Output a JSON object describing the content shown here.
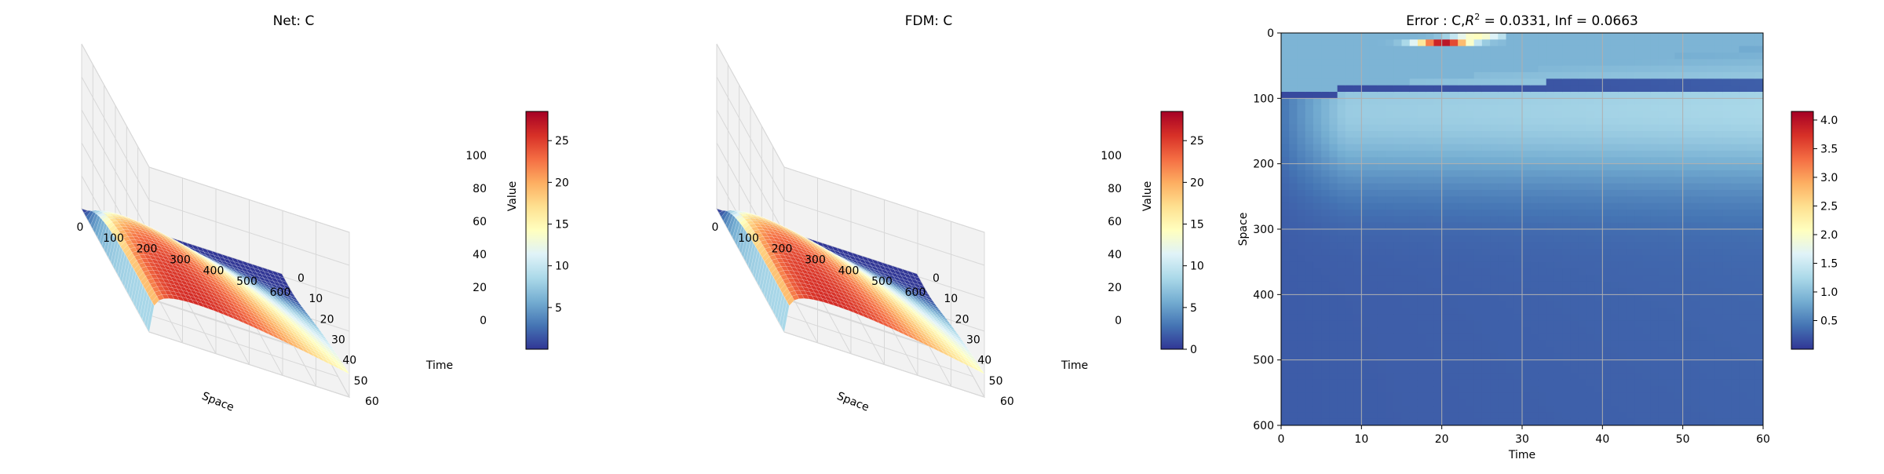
{
  "chart_data": [
    {
      "type": "surface3d",
      "title": "Net: C",
      "xlabel": "Space",
      "ylabel": "Time",
      "zlabel": "Value",
      "xlim": [
        0,
        600
      ],
      "ylim": [
        0,
        60
      ],
      "zlim": [
        0,
        100
      ],
      "x_ticks": [
        "0",
        "100",
        "200",
        "300",
        "400",
        "500",
        "600"
      ],
      "y_ticks": [
        "0",
        "10",
        "20",
        "30",
        "40",
        "50",
        "60"
      ],
      "z_ticks": [
        "0",
        "20",
        "40",
        "60",
        "80",
        "100"
      ],
      "colormap": "RdYlBu_r",
      "colorbar": {
        "min": 0,
        "max": 28.5,
        "ticks": [
          "5",
          "10",
          "15",
          "20",
          "25"
        ]
      },
      "peak_value": 28.5
    },
    {
      "type": "surface3d",
      "title": "FDM: C",
      "xlabel": "Space",
      "ylabel": "Time",
      "zlabel": "Value",
      "xlim": [
        0,
        600
      ],
      "ylim": [
        0,
        60
      ],
      "zlim": [
        0,
        100
      ],
      "x_ticks": [
        "0",
        "100",
        "200",
        "300",
        "400",
        "500",
        "600"
      ],
      "y_ticks": [
        "0",
        "10",
        "20",
        "30",
        "40",
        "50",
        "60"
      ],
      "z_ticks": [
        "0",
        "20",
        "40",
        "60",
        "80",
        "100"
      ],
      "colormap": "RdYlBu_r",
      "colorbar": {
        "min": 0,
        "max": 28.5,
        "ticks": [
          "0",
          "5",
          "10",
          "15",
          "20",
          "25"
        ]
      },
      "peak_value": 28.5
    },
    {
      "type": "heatmap",
      "title_prefix": "Error : C,",
      "title_r2": "R",
      "title_exp": "2",
      "title_suffix": " = 0.0331, Inf = 0.0663",
      "xlabel": "Time",
      "ylabel": "Space",
      "xlim": [
        0,
        60
      ],
      "ylim": [
        600,
        0
      ],
      "x_ticks": [
        "0",
        "10",
        "20",
        "30",
        "40",
        "50",
        "60"
      ],
      "y_ticks": [
        "0",
        "100",
        "200",
        "300",
        "400",
        "500",
        "600"
      ],
      "grid": true,
      "colormap": "RdYlBu_r",
      "colorbar": {
        "min": 0,
        "max": 4.15,
        "ticks": [
          "0.5",
          "1.0",
          "1.5",
          "2.0",
          "2.5",
          "3.0",
          "3.5",
          "4.0"
        ]
      }
    }
  ]
}
